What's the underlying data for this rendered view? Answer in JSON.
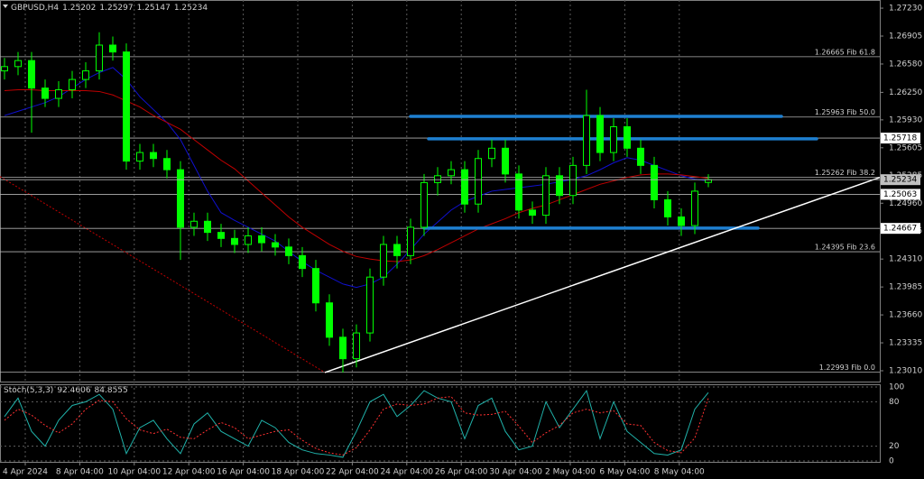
{
  "chart_data": {
    "type": "candlestick",
    "symbol": "GBPUSD,H4",
    "ylim": [
      1.22884,
      1.27325
    ],
    "yticks": [
      {
        "value": 1.2723,
        "label": "1.27230"
      },
      1.26905,
      {
        "value": 1.2658,
        "label": "1.26580"
      },
      {
        "value": 1.2625,
        "label": "1.26250"
      },
      {
        "value": 1.2593,
        "label": "1.25930"
      },
      1.25605,
      1.25285,
      {
        "value": 1.2496,
        "label": "1.24960"
      },
      1.24635,
      {
        "value": 1.2431,
        "label": "1.24310"
      },
      1.23985,
      {
        "value": 1.2366,
        "label": "1.23660"
      },
      1.23335,
      {
        "value": 1.2301,
        "label": "1.23010"
      }
    ],
    "color": "#00ff00",
    "ohlc": [
      [
        1.265,
        1.2665,
        1.264,
        1.2655
      ],
      [
        1.2655,
        1.2672,
        1.2645,
        1.2662
      ],
      [
        1.2662,
        1.2672,
        1.2578,
        1.263
      ],
      [
        1.263,
        1.264,
        1.2608,
        1.2618
      ],
      [
        1.2618,
        1.2638,
        1.2608,
        1.2628
      ],
      [
        1.2628,
        1.265,
        1.2618,
        1.264
      ],
      [
        1.264,
        1.266,
        1.263,
        1.265
      ],
      [
        1.265,
        1.2695,
        1.264,
        1.268
      ],
      [
        1.268,
        1.269,
        1.2662,
        1.2672
      ],
      [
        1.2672,
        1.2682,
        1.2535,
        1.2545
      ],
      [
        1.2545,
        1.2565,
        1.2535,
        1.2555
      ],
      [
        1.2555,
        1.2565,
        1.2538,
        1.2548
      ],
      [
        1.2548,
        1.2558,
        1.2525,
        1.2535
      ],
      [
        1.2535,
        1.2545,
        1.243,
        1.2468
      ],
      [
        1.2468,
        1.2485,
        1.2458,
        1.2475
      ],
      [
        1.2475,
        1.2485,
        1.2452,
        1.2462
      ],
      [
        1.2462,
        1.2472,
        1.2445,
        1.2455
      ],
      [
        1.2455,
        1.2465,
        1.2438,
        1.2448
      ],
      [
        1.2448,
        1.2468,
        1.2438,
        1.2458
      ],
      [
        1.2458,
        1.2468,
        1.244,
        1.245
      ],
      [
        1.245,
        1.246,
        1.2435,
        1.2445
      ],
      [
        1.2445,
        1.2455,
        1.2425,
        1.2435
      ],
      [
        1.2435,
        1.2445,
        1.241,
        1.242
      ],
      [
        1.242,
        1.243,
        1.237,
        1.238
      ],
      [
        1.238,
        1.239,
        1.233,
        1.234
      ],
      [
        1.234,
        1.235,
        1.2299,
        1.2315
      ],
      [
        1.2315,
        1.2355,
        1.2305,
        1.2345
      ],
      [
        1.2345,
        1.242,
        1.2335,
        1.241
      ],
      [
        1.241,
        1.2458,
        1.24,
        1.2448
      ],
      [
        1.2448,
        1.2458,
        1.242,
        1.2435
      ],
      [
        1.2435,
        1.2478,
        1.2425,
        1.2468
      ],
      [
        1.2468,
        1.253,
        1.2458,
        1.252
      ],
      [
        1.252,
        1.2538,
        1.2505,
        1.2528
      ],
      [
        1.2528,
        1.2545,
        1.2518,
        1.2535
      ],
      [
        1.2535,
        1.2545,
        1.2485,
        1.2495
      ],
      [
        1.2495,
        1.2558,
        1.2485,
        1.2548
      ],
      [
        1.2548,
        1.257,
        1.2538,
        1.256
      ],
      [
        1.256,
        1.257,
        1.252,
        1.253
      ],
      [
        1.253,
        1.254,
        1.2478,
        1.2488
      ],
      [
        1.2488,
        1.2498,
        1.2472,
        1.2482
      ],
      [
        1.2482,
        1.2538,
        1.2472,
        1.2528
      ],
      [
        1.2528,
        1.2538,
        1.2495,
        1.2505
      ],
      [
        1.2505,
        1.255,
        1.2495,
        1.254
      ],
      [
        1.254,
        1.2628,
        1.253,
        1.2598
      ],
      [
        1.2598,
        1.2608,
        1.2545,
        1.2555
      ],
      [
        1.2555,
        1.2595,
        1.2545,
        1.2585
      ],
      [
        1.2585,
        1.2595,
        1.255,
        1.256
      ],
      [
        1.256,
        1.257,
        1.253,
        1.254
      ],
      [
        1.254,
        1.255,
        1.249,
        1.25
      ],
      [
        1.25,
        1.251,
        1.247,
        1.248
      ],
      [
        1.248,
        1.249,
        1.2458,
        1.247
      ],
      [
        1.247,
        1.252,
        1.246,
        1.251
      ],
      [
        1.25202,
        1.25297,
        1.25147,
        1.25234
      ]
    ],
    "moving_averages": [
      {
        "color": "#1010d0",
        "values": [
          1.2598,
          1.2603,
          1.2608,
          1.2613,
          1.262,
          1.263,
          1.264,
          1.2648,
          1.2654,
          1.264,
          1.262,
          1.2605,
          1.259,
          1.257,
          1.254,
          1.251,
          1.2485,
          1.2476,
          1.2468,
          1.246,
          1.2452,
          1.244,
          1.2428,
          1.2418,
          1.241,
          1.2402,
          1.2398,
          1.2402,
          1.241,
          1.2425,
          1.2442,
          1.246,
          1.2474,
          1.2488,
          1.2498,
          1.2504,
          1.251,
          1.2512,
          1.2514,
          1.2516,
          1.2518,
          1.2521,
          1.2524,
          1.2528,
          1.2535,
          1.2543,
          1.2549,
          1.2546,
          1.254,
          1.2534,
          1.2528,
          1.2524,
          1.2522
        ]
      },
      {
        "color": "#c00000",
        "values": [
          1.2627,
          1.2628,
          1.2628,
          1.2627,
          1.2627,
          1.2627,
          1.2627,
          1.2626,
          1.2622,
          1.2615,
          1.2608,
          1.2598,
          1.259,
          1.2582,
          1.257,
          1.2558,
          1.2546,
          1.2536,
          1.2522,
          1.2508,
          1.2494,
          1.248,
          1.2468,
          1.2458,
          1.2448,
          1.244,
          1.2434,
          1.2431,
          1.2429,
          1.2428,
          1.243,
          1.2435,
          1.2442,
          1.245,
          1.2458,
          1.2466,
          1.2472,
          1.2478,
          1.2485,
          1.249,
          1.2494,
          1.25,
          1.2506,
          1.2512,
          1.2518,
          1.2522,
          1.2526,
          1.2529,
          1.253,
          1.253,
          1.2529,
          1.2527,
          1.2525
        ]
      }
    ],
    "fib_levels": [
      {
        "value": 1.26665,
        "label": "1.26665 Fib 61.8"
      },
      {
        "value": 1.25963,
        "label": "1.25963 Fib 50.0"
      },
      {
        "value": 1.25262,
        "label": "1.25262 Fib 38.2"
      },
      {
        "value": 1.24395,
        "label": "1.24395 Fib 23.6"
      },
      {
        "value": 1.22993,
        "label": "1.22993 Fib 0.0"
      }
    ],
    "marked_prices": [
      1.25718,
      1.25063,
      1.24667
    ],
    "drawn_levels": [
      1.2597,
      1.2571,
      1.2467
    ],
    "drawn_level_color": "#1e7fd0",
    "trend_line": [
      1.2299,
      1.2526
    ],
    "fib_base_line": [
      1.2527,
      1.2299
    ],
    "time_labels": [
      "4 Apr 2024",
      "8 Apr 04:00",
      "10 Apr 04:00",
      "12 Apr 04:00",
      "16 Apr 04:00",
      "18 Apr 04:00",
      "22 Apr 04:00",
      "24 Apr 04:00",
      "26 Apr 04:00",
      "30 Apr 04:00",
      "2 May 04:00",
      "6 May 04:00",
      "8 May 04:00"
    ],
    "stochastic": {
      "name": "Stoch(5,3,3)",
      "ylim": [
        0,
        100
      ],
      "yticks": [
        100,
        80,
        20,
        0
      ],
      "series": [
        {
          "color": "#20b2aa",
          "values": [
            60,
            85,
            40,
            20,
            55,
            75,
            80,
            90,
            70,
            10,
            45,
            55,
            30,
            10,
            50,
            65,
            40,
            30,
            20,
            55,
            45,
            25,
            15,
            10,
            8,
            5,
            40,
            80,
            90,
            60,
            75,
            95,
            85,
            80,
            30,
            75,
            85,
            40,
            15,
            20,
            80,
            45,
            70,
            95,
            30,
            80,
            40,
            25,
            10,
            8,
            15,
            70,
            92.4606
          ]
        },
        {
          "color": "#ff3030",
          "values": [
            55,
            70,
            62,
            48,
            38,
            50,
            70,
            82,
            80,
            57,
            42,
            37,
            43,
            32,
            30,
            42,
            52,
            45,
            30,
            35,
            40,
            42,
            28,
            17,
            11,
            8,
            18,
            42,
            70,
            77,
            75,
            77,
            85,
            87,
            65,
            62,
            63,
            67,
            47,
            25,
            38,
            48,
            65,
            70,
            65,
            68,
            50,
            48,
            25,
            14,
            11,
            31,
            84.8555
          ]
        }
      ]
    }
  }
}
